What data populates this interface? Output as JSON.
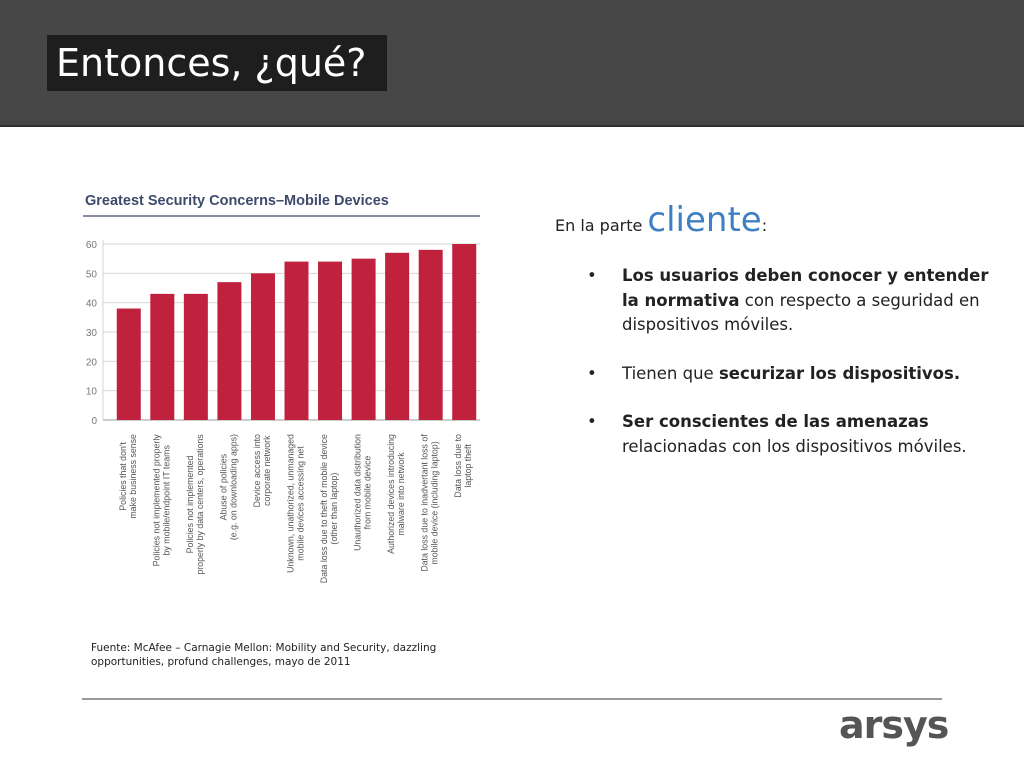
{
  "slide": {
    "title": "Entonces, ¿qué?"
  },
  "chart_data": {
    "type": "bar",
    "title": "Greatest Security Concerns–Mobile Devices",
    "categories": [
      [
        "Policies that don't",
        "make business sense"
      ],
      [
        "Policies not implemented properly",
        "by mobile/endpoint IT teams"
      ],
      [
        "Policies not implemented",
        "properly by data centers, operations"
      ],
      [
        "Abuse of policies",
        "(e.g. on downloading apps)"
      ],
      [
        "Device access into",
        "corporate network"
      ],
      [
        "Unknown, unathorized, unmanaged",
        "mobile devices accessing net"
      ],
      [
        "Data loss due to theft of mobile device",
        "(other than laptop)"
      ],
      [
        "Unauthorized data distribution",
        "from mobile device"
      ],
      [
        "Authorized devices introducing",
        "malware into network"
      ],
      [
        "Data loss due to inadvertant loss of",
        "mobile device (including laptop)"
      ],
      [
        "Data loss due to",
        "laptop theft"
      ]
    ],
    "values": [
      38,
      43,
      43,
      47,
      50,
      54,
      54,
      55,
      57,
      58,
      60
    ],
    "ylim": [
      0,
      60
    ],
    "yticks": [
      0,
      10,
      20,
      30,
      40,
      50,
      60
    ],
    "grid": true,
    "bar_color": "#c0213c",
    "xlabel": "",
    "ylabel": ""
  },
  "source": "Fuente: McAfee – Carnagie Mellon: Mobility and Security, dazzling opportunities, profund challenges, mayo de 2011",
  "right": {
    "intro_prefix": "En la parte ",
    "intro_big": "cliente",
    "intro_suffix": ":",
    "bullet_char": "•",
    "b1_bold": "Los usuarios deben conocer y entender la normativa",
    "b1_rest": " con respecto a seguridad en dispositivos móviles.",
    "b2_pre": "Tienen que ",
    "b2_bold": "securizar los dispositivos.",
    "b3_bold": "Ser conscientes de las amenazas",
    "b3_rest": " relacionadas con los dispositivos móviles."
  },
  "logo": {
    "text": "arsys"
  },
  "colors": {
    "header": "#474747",
    "accent": "#3f7fc3",
    "bars": "#c0213c"
  }
}
